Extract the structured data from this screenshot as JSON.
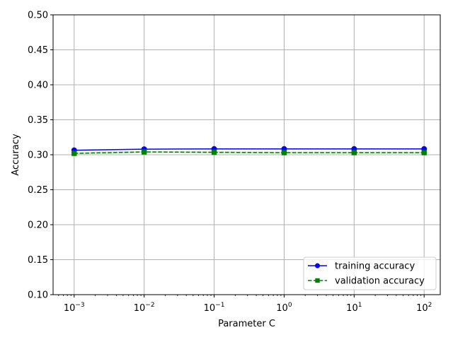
{
  "chart_data": {
    "type": "line",
    "xscale": "log",
    "x": [
      0.001,
      0.01,
      0.1,
      1,
      10,
      100
    ],
    "x_tick_labels": [
      {
        "base": "10",
        "exp": "−3"
      },
      {
        "base": "10",
        "exp": "−2"
      },
      {
        "base": "10",
        "exp": "−1"
      },
      {
        "base": "10",
        "exp": "0"
      },
      {
        "base": "10",
        "exp": "1"
      },
      {
        "base": "10",
        "exp": "2"
      }
    ],
    "xlim": [
      0.0005,
      170
    ],
    "ylim": [
      0.1,
      0.5
    ],
    "y_ticks": [
      "0.10",
      "0.15",
      "0.20",
      "0.25",
      "0.30",
      "0.35",
      "0.40",
      "0.45",
      "0.50"
    ],
    "xlabel": "Parameter C",
    "ylabel": "Accuracy",
    "grid": true,
    "legend_position": "lower-right",
    "series": [
      {
        "name": "training accuracy",
        "color": "#0000ff",
        "marker": "circle",
        "linestyle": "solid",
        "values": [
          0.3065,
          0.308,
          0.3083,
          0.3083,
          0.3083,
          0.3083
        ],
        "band": [
          0.0005,
          0.0003,
          0.0003,
          0.0003,
          0.0003,
          0.0003
        ]
      },
      {
        "name": "validation accuracy",
        "color": "#008000",
        "marker": "square",
        "linestyle": "dashed",
        "values": [
          0.302,
          0.304,
          0.3035,
          0.303,
          0.303,
          0.303
        ],
        "band": [
          0.0015,
          0.0015,
          0.0015,
          0.0015,
          0.0015,
          0.0015
        ]
      }
    ]
  }
}
